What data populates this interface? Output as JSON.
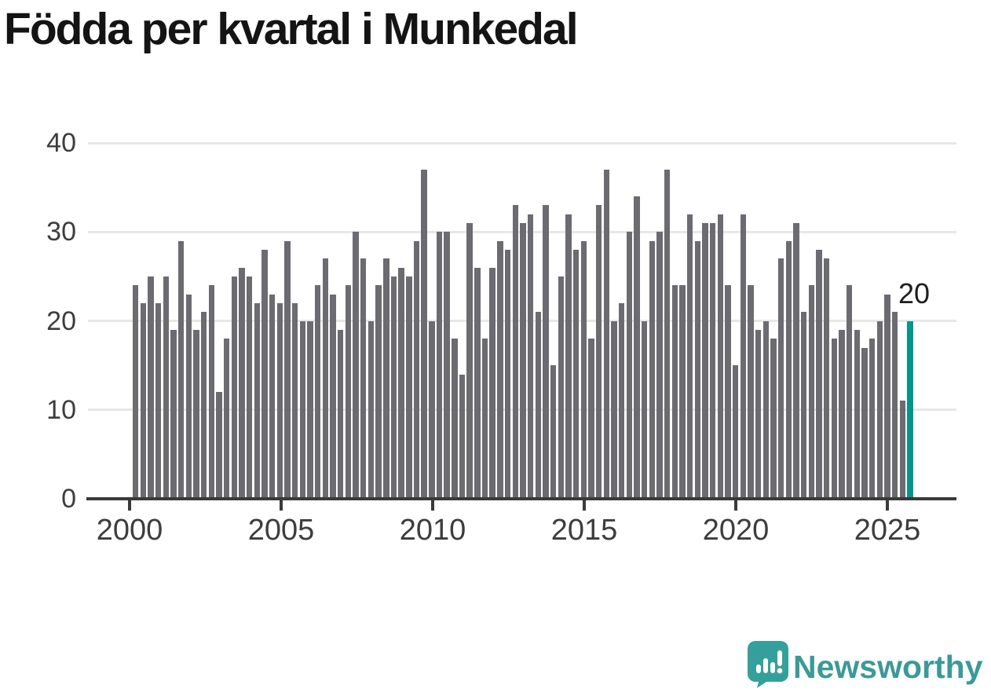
{
  "title": "Födda per kvartal i Munkedal",
  "annotation": {
    "label": "20"
  },
  "branding": {
    "name": "Newsworthy",
    "icon": "newsworthy-speech-bubble-chart-icon",
    "text_color": "#3b9a97",
    "icon_color": "#35a09b"
  },
  "chart_data": {
    "type": "bar",
    "title": "Födda per kvartal i Munkedal",
    "xlabel": "",
    "ylabel": "",
    "ylim": [
      0,
      40
    ],
    "yticks": [
      0,
      10,
      20,
      30,
      40
    ],
    "xticks": [
      "2000",
      "2005",
      "2010",
      "2015",
      "2020",
      "2025"
    ],
    "grid": "horizontal",
    "legend": "none",
    "bar_color": "#6c6b71",
    "highlight_color": "#00968f",
    "highlight_index": 102,
    "highlight_label": "20",
    "quarters": [
      "2000-Q1",
      "2000-Q2",
      "2000-Q3",
      "2000-Q4",
      "2001-Q1",
      "2001-Q2",
      "2001-Q3",
      "2001-Q4",
      "2002-Q1",
      "2002-Q2",
      "2002-Q3",
      "2002-Q4",
      "2003-Q1",
      "2003-Q2",
      "2003-Q3",
      "2003-Q4",
      "2004-Q1",
      "2004-Q2",
      "2004-Q3",
      "2004-Q4",
      "2005-Q1",
      "2005-Q2",
      "2005-Q3",
      "2005-Q4",
      "2006-Q1",
      "2006-Q2",
      "2006-Q3",
      "2006-Q4",
      "2007-Q1",
      "2007-Q2",
      "2007-Q3",
      "2007-Q4",
      "2008-Q1",
      "2008-Q2",
      "2008-Q3",
      "2008-Q4",
      "2009-Q1",
      "2009-Q2",
      "2009-Q3",
      "2009-Q4",
      "2010-Q1",
      "2010-Q2",
      "2010-Q3",
      "2010-Q4",
      "2011-Q1",
      "2011-Q2",
      "2011-Q3",
      "2011-Q4",
      "2012-Q1",
      "2012-Q2",
      "2012-Q3",
      "2012-Q4",
      "2013-Q1",
      "2013-Q2",
      "2013-Q3",
      "2013-Q4",
      "2014-Q1",
      "2014-Q2",
      "2014-Q3",
      "2014-Q4",
      "2015-Q1",
      "2015-Q2",
      "2015-Q3",
      "2015-Q4",
      "2016-Q1",
      "2016-Q2",
      "2016-Q3",
      "2016-Q4",
      "2017-Q1",
      "2017-Q2",
      "2017-Q3",
      "2017-Q4",
      "2018-Q1",
      "2018-Q2",
      "2018-Q3",
      "2018-Q4",
      "2019-Q1",
      "2019-Q2",
      "2019-Q3",
      "2019-Q4",
      "2020-Q1",
      "2020-Q2",
      "2020-Q3",
      "2020-Q4",
      "2021-Q1",
      "2021-Q2",
      "2021-Q3",
      "2021-Q4",
      "2022-Q1",
      "2022-Q2",
      "2022-Q3",
      "2022-Q4",
      "2023-Q1",
      "2023-Q2",
      "2023-Q3",
      "2023-Q4",
      "2024-Q1",
      "2024-Q2",
      "2024-Q3",
      "2024-Q4",
      "2025-Q1",
      "2025-Q2",
      "2025-Q3"
    ],
    "values": [
      24,
      22,
      25,
      22,
      25,
      19,
      29,
      23,
      19,
      21,
      24,
      12,
      18,
      25,
      26,
      25,
      22,
      28,
      23,
      22,
      29,
      22,
      20,
      20,
      24,
      27,
      23,
      19,
      24,
      30,
      27,
      20,
      24,
      27,
      25,
      26,
      25,
      29,
      37,
      20,
      30,
      30,
      18,
      14,
      31,
      26,
      18,
      26,
      29,
      28,
      33,
      31,
      32,
      21,
      33,
      15,
      25,
      32,
      28,
      29,
      18,
      33,
      37,
      20,
      22,
      30,
      34,
      20,
      29,
      30,
      37,
      24,
      24,
      32,
      29,
      31,
      31,
      32,
      24,
      15,
      32,
      24,
      19,
      20,
      18,
      27,
      29,
      31,
      21,
      24,
      28,
      27,
      18,
      19,
      24,
      19,
      17,
      18,
      20,
      23,
      21,
      11,
      20
    ]
  }
}
